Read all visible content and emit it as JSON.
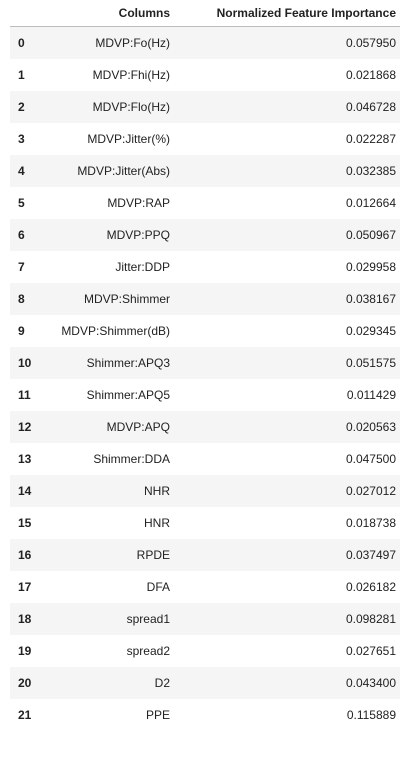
{
  "table": {
    "headers": {
      "index": "",
      "columns": "Columns",
      "importance": "Normalized Feature Importance"
    },
    "rows": [
      {
        "index": "0",
        "column": "MDVP:Fo(Hz)",
        "importance": "0.057950"
      },
      {
        "index": "1",
        "column": "MDVP:Fhi(Hz)",
        "importance": "0.021868"
      },
      {
        "index": "2",
        "column": "MDVP:Flo(Hz)",
        "importance": "0.046728"
      },
      {
        "index": "3",
        "column": "MDVP:Jitter(%)",
        "importance": "0.022287"
      },
      {
        "index": "4",
        "column": "MDVP:Jitter(Abs)",
        "importance": "0.032385"
      },
      {
        "index": "5",
        "column": "MDVP:RAP",
        "importance": "0.012664"
      },
      {
        "index": "6",
        "column": "MDVP:PPQ",
        "importance": "0.050967"
      },
      {
        "index": "7",
        "column": "Jitter:DDP",
        "importance": "0.029958"
      },
      {
        "index": "8",
        "column": "MDVP:Shimmer",
        "importance": "0.038167"
      },
      {
        "index": "9",
        "column": "MDVP:Shimmer(dB)",
        "importance": "0.029345"
      },
      {
        "index": "10",
        "column": "Shimmer:APQ3",
        "importance": "0.051575"
      },
      {
        "index": "11",
        "column": "Shimmer:APQ5",
        "importance": "0.011429"
      },
      {
        "index": "12",
        "column": "MDVP:APQ",
        "importance": "0.020563"
      },
      {
        "index": "13",
        "column": "Shimmer:DDA",
        "importance": "0.047500"
      },
      {
        "index": "14",
        "column": "NHR",
        "importance": "0.027012"
      },
      {
        "index": "15",
        "column": "HNR",
        "importance": "0.018738"
      },
      {
        "index": "16",
        "column": "RPDE",
        "importance": "0.037497"
      },
      {
        "index": "17",
        "column": "DFA",
        "importance": "0.026182"
      },
      {
        "index": "18",
        "column": "spread1",
        "importance": "0.098281"
      },
      {
        "index": "19",
        "column": "spread2",
        "importance": "0.027651"
      },
      {
        "index": "20",
        "column": "D2",
        "importance": "0.043400"
      },
      {
        "index": "21",
        "column": "PPE",
        "importance": "0.115889"
      }
    ]
  }
}
